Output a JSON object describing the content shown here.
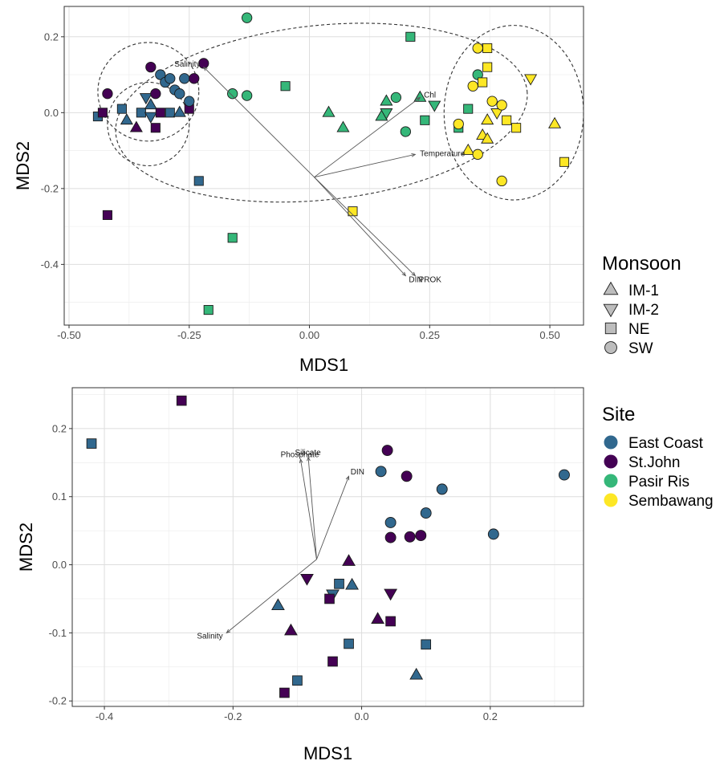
{
  "colors": {
    "East Coast": "#31688e",
    "St.John": "#440154",
    "Pasir Ris": "#35b779",
    "Sembawang": "#fde725",
    "legend_shape_fill": "#bdbdbd",
    "vector": "#555555"
  },
  "legend_monsoon": {
    "title": "Monsoon",
    "items": [
      {
        "label": "IM-1",
        "shape": "triangle-up-icon"
      },
      {
        "label": "IM-2",
        "shape": "triangle-down-icon"
      },
      {
        "label": "NE",
        "shape": "square-icon"
      },
      {
        "label": "SW",
        "shape": "circle-icon"
      }
    ]
  },
  "legend_site": {
    "title": "Site",
    "items": [
      {
        "label": "East Coast",
        "color": "#31688e"
      },
      {
        "label": "St.John",
        "color": "#440154"
      },
      {
        "label": "Pasir Ris",
        "color": "#35b779"
      },
      {
        "label": "Sembawang",
        "color": "#fde725"
      }
    ]
  },
  "chart_data": [
    {
      "type": "scatter",
      "title": "",
      "xlabel": "MDS1",
      "ylabel": "MDS2",
      "xlim": [
        -0.51,
        0.57
      ],
      "ylim": [
        -0.56,
        0.28
      ],
      "xticks": [
        -0.5,
        -0.25,
        0.0,
        0.25,
        0.5
      ],
      "xtick_labels": [
        "-0.50",
        "-0.25",
        "0.00",
        "0.25",
        "0.50"
      ],
      "yticks": [
        -0.4,
        -0.2,
        0.0,
        0.2
      ],
      "ytick_labels": [
        "-0.4",
        "-0.2",
        "0.0",
        "0.2"
      ],
      "grid": true,
      "points": [
        {
          "x": -0.44,
          "y": -0.01,
          "site": "East Coast",
          "monsoon": "NE"
        },
        {
          "x": -0.43,
          "y": 0.0,
          "site": "St.John",
          "monsoon": "NE"
        },
        {
          "x": -0.39,
          "y": 0.01,
          "site": "East Coast",
          "monsoon": "NE"
        },
        {
          "x": -0.38,
          "y": -0.02,
          "site": "East Coast",
          "monsoon": "IM-1"
        },
        {
          "x": -0.36,
          "y": -0.04,
          "site": "St.John",
          "monsoon": "IM-1"
        },
        {
          "x": -0.35,
          "y": 0.0,
          "site": "East Coast",
          "monsoon": "NE"
        },
        {
          "x": -0.34,
          "y": 0.04,
          "site": "East Coast",
          "monsoon": "IM-2"
        },
        {
          "x": -0.33,
          "y": 0.02,
          "site": "East Coast",
          "monsoon": "IM-1"
        },
        {
          "x": -0.33,
          "y": -0.01,
          "site": "East Coast",
          "monsoon": "IM-2"
        },
        {
          "x": -0.32,
          "y": -0.04,
          "site": "St.John",
          "monsoon": "NE"
        },
        {
          "x": -0.31,
          "y": 0.0,
          "site": "St.John",
          "monsoon": "NE"
        },
        {
          "x": -0.29,
          "y": 0.0,
          "site": "East Coast",
          "monsoon": "NE"
        },
        {
          "x": -0.27,
          "y": 0.0,
          "site": "East Coast",
          "monsoon": "IM-1"
        },
        {
          "x": -0.25,
          "y": 0.01,
          "site": "St.John",
          "monsoon": "NE"
        },
        {
          "x": -0.42,
          "y": 0.05,
          "site": "St.John",
          "monsoon": "SW"
        },
        {
          "x": -0.33,
          "y": 0.12,
          "site": "St.John",
          "monsoon": "SW"
        },
        {
          "x": -0.31,
          "y": 0.1,
          "site": "East Coast",
          "monsoon": "SW"
        },
        {
          "x": -0.3,
          "y": 0.08,
          "site": "East Coast",
          "monsoon": "SW"
        },
        {
          "x": -0.29,
          "y": 0.09,
          "site": "East Coast",
          "monsoon": "SW"
        },
        {
          "x": -0.28,
          "y": 0.06,
          "site": "East Coast",
          "monsoon": "SW"
        },
        {
          "x": -0.27,
          "y": 0.05,
          "site": "East Coast",
          "monsoon": "SW"
        },
        {
          "x": -0.26,
          "y": 0.09,
          "site": "East Coast",
          "monsoon": "SW"
        },
        {
          "x": -0.25,
          "y": 0.03,
          "site": "East Coast",
          "monsoon": "SW"
        },
        {
          "x": -0.24,
          "y": 0.09,
          "site": "St.John",
          "monsoon": "SW"
        },
        {
          "x": -0.22,
          "y": 0.13,
          "site": "St.John",
          "monsoon": "SW"
        },
        {
          "x": -0.32,
          "y": 0.05,
          "site": "St.John",
          "monsoon": "SW"
        },
        {
          "x": -0.42,
          "y": -0.27,
          "site": "St.John",
          "monsoon": "NE"
        },
        {
          "x": -0.23,
          "y": -0.18,
          "site": "East Coast",
          "monsoon": "NE"
        },
        {
          "x": -0.13,
          "y": 0.25,
          "site": "Pasir Ris",
          "monsoon": "SW"
        },
        {
          "x": -0.16,
          "y": 0.05,
          "site": "Pasir Ris",
          "monsoon": "SW"
        },
        {
          "x": -0.13,
          "y": 0.045,
          "site": "Pasir Ris",
          "monsoon": "SW"
        },
        {
          "x": -0.05,
          "y": 0.07,
          "site": "Pasir Ris",
          "monsoon": "NE"
        },
        {
          "x": -0.16,
          "y": -0.33,
          "site": "Pasir Ris",
          "monsoon": "NE"
        },
        {
          "x": -0.21,
          "y": -0.52,
          "site": "Pasir Ris",
          "monsoon": "NE"
        },
        {
          "x": 0.09,
          "y": -0.26,
          "site": "Sembawang",
          "monsoon": "NE"
        },
        {
          "x": 0.04,
          "y": 0.0,
          "site": "Pasir Ris",
          "monsoon": "IM-1"
        },
        {
          "x": 0.07,
          "y": -0.04,
          "site": "Pasir Ris",
          "monsoon": "IM-1"
        },
        {
          "x": 0.15,
          "y": -0.01,
          "site": "Pasir Ris",
          "monsoon": "IM-1"
        },
        {
          "x": 0.16,
          "y": 0.03,
          "site": "Pasir Ris",
          "monsoon": "IM-1"
        },
        {
          "x": 0.16,
          "y": 0.0,
          "site": "Pasir Ris",
          "monsoon": "IM-2"
        },
        {
          "x": 0.18,
          "y": 0.04,
          "site": "Pasir Ris",
          "monsoon": "SW"
        },
        {
          "x": 0.2,
          "y": -0.05,
          "site": "Pasir Ris",
          "monsoon": "SW"
        },
        {
          "x": 0.21,
          "y": 0.2,
          "site": "Pasir Ris",
          "monsoon": "NE"
        },
        {
          "x": 0.23,
          "y": 0.04,
          "site": "Pasir Ris",
          "monsoon": "IM-1"
        },
        {
          "x": 0.24,
          "y": -0.02,
          "site": "Pasir Ris",
          "monsoon": "NE"
        },
        {
          "x": 0.26,
          "y": 0.02,
          "site": "Pasir Ris",
          "monsoon": "IM-2"
        },
        {
          "x": 0.31,
          "y": -0.04,
          "site": "Pasir Ris",
          "monsoon": "NE"
        },
        {
          "x": 0.33,
          "y": 0.01,
          "site": "Pasir Ris",
          "monsoon": "NE"
        },
        {
          "x": 0.35,
          "y": 0.1,
          "site": "Pasir Ris",
          "monsoon": "SW"
        },
        {
          "x": 0.34,
          "y": 0.07,
          "site": "Sembawang",
          "monsoon": "SW"
        },
        {
          "x": 0.35,
          "y": 0.17,
          "site": "Sembawang",
          "monsoon": "SW"
        },
        {
          "x": 0.37,
          "y": 0.17,
          "site": "Sembawang",
          "monsoon": "NE"
        },
        {
          "x": 0.37,
          "y": 0.12,
          "site": "Sembawang",
          "monsoon": "NE"
        },
        {
          "x": 0.36,
          "y": 0.08,
          "site": "Sembawang",
          "monsoon": "NE"
        },
        {
          "x": 0.31,
          "y": -0.03,
          "site": "Sembawang",
          "monsoon": "SW"
        },
        {
          "x": 0.33,
          "y": -0.1,
          "site": "Sembawang",
          "monsoon": "IM-1"
        },
        {
          "x": 0.35,
          "y": -0.11,
          "site": "Sembawang",
          "monsoon": "SW"
        },
        {
          "x": 0.36,
          "y": -0.06,
          "site": "Sembawang",
          "monsoon": "IM-1"
        },
        {
          "x": 0.37,
          "y": -0.07,
          "site": "Sembawang",
          "monsoon": "IM-1"
        },
        {
          "x": 0.37,
          "y": -0.02,
          "site": "Sembawang",
          "monsoon": "IM-1"
        },
        {
          "x": 0.38,
          "y": 0.03,
          "site": "Sembawang",
          "monsoon": "SW"
        },
        {
          "x": 0.39,
          "y": 0.0,
          "site": "Sembawang",
          "monsoon": "IM-2"
        },
        {
          "x": 0.4,
          "y": 0.02,
          "site": "Sembawang",
          "monsoon": "SW"
        },
        {
          "x": 0.4,
          "y": -0.18,
          "site": "Sembawang",
          "monsoon": "SW"
        },
        {
          "x": 0.41,
          "y": -0.02,
          "site": "Sembawang",
          "monsoon": "NE"
        },
        {
          "x": 0.43,
          "y": -0.04,
          "site": "Sembawang",
          "monsoon": "NE"
        },
        {
          "x": 0.46,
          "y": 0.09,
          "site": "Sembawang",
          "monsoon": "IM-2"
        },
        {
          "x": 0.51,
          "y": -0.03,
          "site": "Sembawang",
          "monsoon": "IM-1"
        },
        {
          "x": 0.53,
          "y": -0.13,
          "site": "Sembawang",
          "monsoon": "NE"
        }
      ],
      "vectors_origin": [
        0.01,
        -0.17
      ],
      "vectors": [
        {
          "label": "Salinity",
          "x": -0.22,
          "y": 0.12
        },
        {
          "label": "Chl",
          "x": 0.23,
          "y": 0.04
        },
        {
          "label": "Temperature",
          "x": 0.22,
          "y": -0.11
        },
        {
          "label": "DIN",
          "x": 0.2,
          "y": -0.43
        },
        {
          "label": "PROK",
          "x": 0.22,
          "y": -0.43
        }
      ],
      "ellipses": [
        {
          "cx": -0.335,
          "cy": 0.055,
          "rx": 0.105,
          "ry": 0.13,
          "rot": 0
        },
        {
          "cx": -0.335,
          "cy": -0.03,
          "rx": 0.085,
          "ry": 0.11,
          "rot": 0
        },
        {
          "cx": 0.025,
          "cy": 0.0,
          "rx": 0.43,
          "ry": 0.23,
          "rot": -6
        },
        {
          "cx": 0.425,
          "cy": 0.0,
          "rx": 0.145,
          "ry": 0.23,
          "rot": 0
        }
      ]
    },
    {
      "type": "scatter",
      "title": "",
      "xlabel": "MDS1",
      "ylabel": "MDS2",
      "xlim": [
        -0.45,
        0.345
      ],
      "ylim": [
        -0.208,
        0.26
      ],
      "xticks": [
        -0.4,
        -0.2,
        0.0,
        0.2
      ],
      "xtick_labels": [
        "-0.4",
        "-0.2",
        "0.0",
        "0.2"
      ],
      "yticks": [
        -0.2,
        -0.1,
        0.0,
        0.1,
        0.2
      ],
      "ytick_labels": [
        "-0.2",
        "-0.1",
        "0.0",
        "0.1",
        "0.2"
      ],
      "grid": true,
      "points": [
        {
          "x": -0.42,
          "y": 0.178,
          "site": "East Coast",
          "monsoon": "NE"
        },
        {
          "x": -0.28,
          "y": 0.241,
          "site": "St.John",
          "monsoon": "NE"
        },
        {
          "x": 0.03,
          "y": 0.137,
          "site": "East Coast",
          "monsoon": "SW"
        },
        {
          "x": 0.04,
          "y": 0.168,
          "site": "St.John",
          "monsoon": "SW"
        },
        {
          "x": 0.07,
          "y": 0.13,
          "site": "St.John",
          "monsoon": "SW"
        },
        {
          "x": 0.125,
          "y": 0.111,
          "site": "East Coast",
          "monsoon": "SW"
        },
        {
          "x": 0.1,
          "y": 0.076,
          "site": "East Coast",
          "monsoon": "SW"
        },
        {
          "x": 0.045,
          "y": 0.062,
          "site": "East Coast",
          "monsoon": "SW"
        },
        {
          "x": 0.045,
          "y": 0.04,
          "site": "St.John",
          "monsoon": "SW"
        },
        {
          "x": 0.075,
          "y": 0.041,
          "site": "St.John",
          "monsoon": "SW"
        },
        {
          "x": 0.092,
          "y": 0.043,
          "site": "St.John",
          "monsoon": "SW"
        },
        {
          "x": 0.205,
          "y": 0.045,
          "site": "East Coast",
          "monsoon": "SW"
        },
        {
          "x": 0.315,
          "y": 0.132,
          "site": "East Coast",
          "monsoon": "SW"
        },
        {
          "x": -0.02,
          "y": 0.005,
          "site": "St.John",
          "monsoon": "IM-1"
        },
        {
          "x": -0.085,
          "y": -0.02,
          "site": "St.John",
          "monsoon": "IM-2"
        },
        {
          "x": -0.035,
          "y": -0.028,
          "site": "East Coast",
          "monsoon": "NE"
        },
        {
          "x": -0.015,
          "y": -0.03,
          "site": "East Coast",
          "monsoon": "IM-1"
        },
        {
          "x": -0.045,
          "y": -0.043,
          "site": "East Coast",
          "monsoon": "IM-2"
        },
        {
          "x": -0.05,
          "y": -0.05,
          "site": "St.John",
          "monsoon": "NE"
        },
        {
          "x": 0.045,
          "y": -0.042,
          "site": "St.John",
          "monsoon": "IM-2"
        },
        {
          "x": -0.13,
          "y": -0.06,
          "site": "East Coast",
          "monsoon": "IM-1"
        },
        {
          "x": 0.025,
          "y": -0.08,
          "site": "St.John",
          "monsoon": "IM-1"
        },
        {
          "x": 0.045,
          "y": -0.083,
          "site": "St.John",
          "monsoon": "NE"
        },
        {
          "x": -0.11,
          "y": -0.097,
          "site": "St.John",
          "monsoon": "IM-1"
        },
        {
          "x": -0.02,
          "y": -0.116,
          "site": "East Coast",
          "monsoon": "NE"
        },
        {
          "x": 0.1,
          "y": -0.117,
          "site": "East Coast",
          "monsoon": "NE"
        },
        {
          "x": -0.045,
          "y": -0.142,
          "site": "St.John",
          "monsoon": "NE"
        },
        {
          "x": 0.085,
          "y": -0.162,
          "site": "East Coast",
          "monsoon": "IM-1"
        },
        {
          "x": -0.1,
          "y": -0.17,
          "site": "East Coast",
          "monsoon": "NE"
        },
        {
          "x": -0.12,
          "y": -0.188,
          "site": "St.John",
          "monsoon": "NE"
        }
      ],
      "vectors_origin": [
        -0.07,
        0.008
      ],
      "vectors": [
        {
          "label": "Phosphate",
          "x": -0.095,
          "y": 0.155
        },
        {
          "label": "Silicate",
          "x": -0.083,
          "y": 0.158
        },
        {
          "label": "DIN",
          "x": -0.02,
          "y": 0.13
        },
        {
          "label": "Salinity",
          "x": -0.21,
          "y": -0.1
        }
      ],
      "ellipses": []
    }
  ]
}
